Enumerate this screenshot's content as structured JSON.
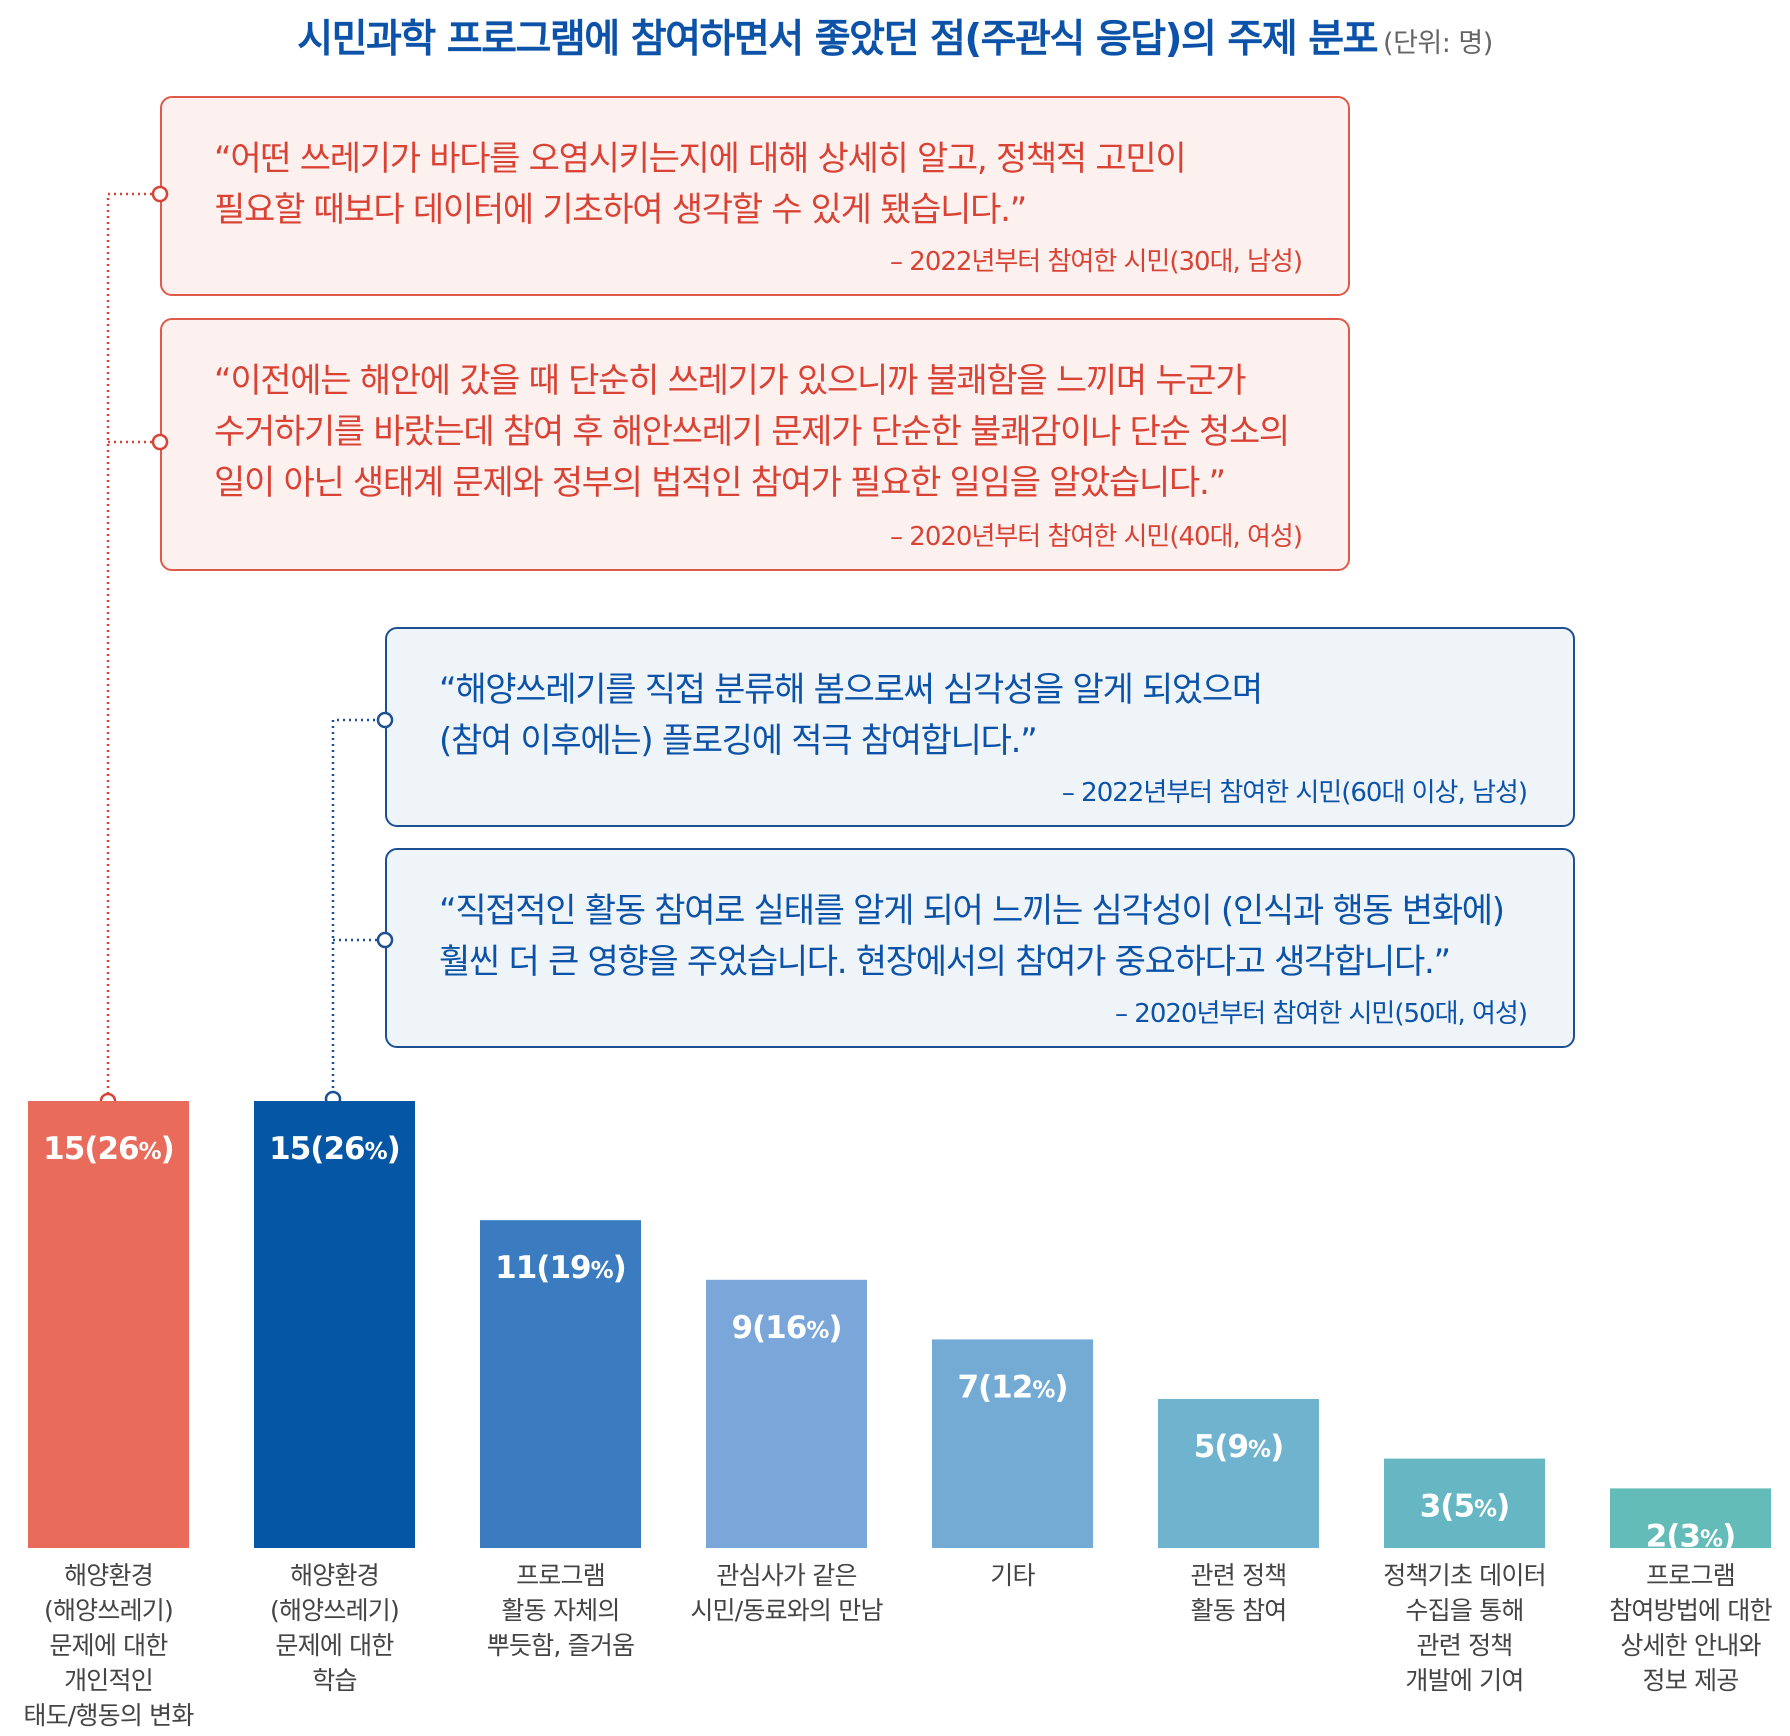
{
  "title": "시민과학 프로그램에 참여하면서 좋았던 점(주관식 응답)의 주제 분포",
  "unit": "(단위: 명)",
  "quotes": [
    {
      "text": "“어떤 쓰레기가 바다를 오염시키는지에 대해 상세히 알고, 정책적 고민이\n필요할 때보다 데이터에 기초하여 생각할 수 있게 됐습니다.”",
      "attribution": "– 2022년부터 참여한 시민(30대, 남성)"
    },
    {
      "text": "“이전에는 해안에 갔을 때 단순히 쓰레기가 있으니까 불쾌함을 느끼며 누군가\n수거하기를 바랐는데 참여 후 해안쓰레기 문제가 단순한 불쾌감이나 단순 청소의\n일이 아닌 생태계 문제와 정부의 법적인 참여가 필요한 일임을 알았습니다.”",
      "attribution": "– 2020년부터 참여한 시민(40대, 여성)"
    },
    {
      "text": "“해양쓰레기를 직접 분류해 봄으로써 심각성을 알게 되었으며\n(참여 이후에는) 플로깅에 적극 참여합니다.”",
      "attribution": "– 2022년부터 참여한 시민(60대 이상, 남성)"
    },
    {
      "text": "“직접적인 활동 참여로 실태를 알게 되어 느끼는 심각성이 (인식과 행동 변화에)\n훨씬 더 큰 영향을 주었습니다. 현장에서의 참여가 중요하다고 생각합니다.”",
      "attribution": "– 2020년부터 참여한 시민(50대, 여성)"
    }
  ],
  "chart_data": {
    "type": "bar",
    "categories": [
      [
        "해양환경",
        "(해양쓰레기)",
        "문제에 대한",
        "개인적인",
        "태도/행동의 변화"
      ],
      [
        "해양환경",
        "(해양쓰레기)",
        "문제에 대한",
        "학습"
      ],
      [
        "프로그램",
        "활동 자체의",
        "뿌듯함, 즐거움"
      ],
      [
        "관심사가 같은",
        "시민/동료와의 만남"
      ],
      [
        "기타"
      ],
      [
        "관련 정책",
        "활동 참여"
      ],
      [
        "정책기초 데이터",
        "수집을 통해",
        "관련 정책",
        "개발에 기여"
      ],
      [
        "프로그램",
        "참여방법에 대한",
        "상세한 안내와",
        "정보 제공"
      ]
    ],
    "values": [
      15,
      15,
      11,
      9,
      7,
      5,
      3,
      2
    ],
    "percents": [
      "26",
      "26",
      "19",
      "16",
      "12",
      "9",
      "5",
      "3"
    ],
    "percent_suffix": "%",
    "colors": [
      "#e96b5b",
      "#0656a6",
      "#3b7bc0",
      "#7aa6d9",
      "#74abd4",
      "#6fb3cf",
      "#66b6c3",
      "#63bcb8"
    ],
    "ylim": [
      0,
      15
    ],
    "grid": false,
    "legend": "none"
  },
  "connectors": {
    "red": "#d94335",
    "blue": "#1d4f93"
  }
}
